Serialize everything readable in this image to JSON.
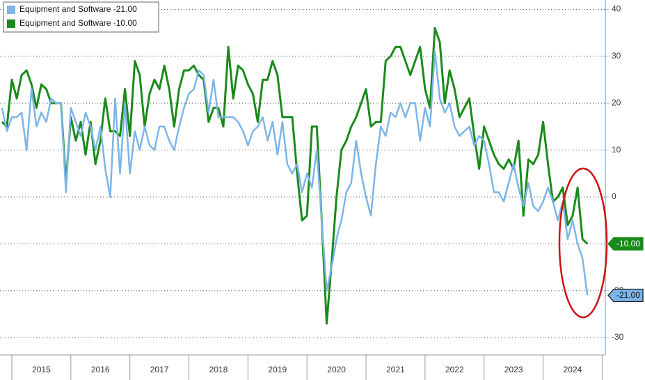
{
  "chart_data": {
    "type": "line",
    "categories": [
      null,
      null,
      null,
      null,
      null,
      null,
      null,
      null,
      "2015",
      null,
      null,
      null,
      null,
      null,
      null,
      null,
      null,
      null,
      null,
      null,
      "2016",
      null,
      null,
      null,
      null,
      null,
      null,
      null,
      null,
      null,
      null,
      null,
      "2017",
      null,
      null,
      null,
      null,
      null,
      null,
      null,
      null,
      null,
      null,
      null,
      "2018",
      null,
      null,
      null,
      null,
      null,
      null,
      null,
      null,
      null,
      null,
      null,
      "2019",
      null,
      null,
      null,
      null,
      null,
      null,
      null,
      null,
      null,
      null,
      null,
      "2020",
      null,
      null,
      null,
      null,
      null,
      null,
      null,
      null,
      null,
      null,
      null,
      "2021",
      null,
      null,
      null,
      null,
      null,
      null,
      null,
      null,
      null,
      null,
      null,
      "2022",
      null,
      null,
      null,
      null,
      null,
      null,
      null,
      null,
      null,
      null,
      null,
      "2023",
      null,
      null,
      null,
      null,
      null,
      null,
      null,
      null,
      null,
      null,
      null,
      "2024",
      null,
      null,
      null
    ],
    "series": [
      {
        "name": "Equipment and Software -21.00",
        "color": "#7cb5e8",
        "values": [
          19,
          14,
          17,
          17,
          18,
          10,
          23,
          15,
          18,
          16,
          21,
          20,
          20,
          1,
          19,
          16,
          13,
          18,
          15,
          10,
          15,
          6,
          0,
          21,
          5,
          20,
          5,
          14,
          10,
          15,
          11,
          10,
          15,
          15,
          12,
          10,
          15,
          19,
          22,
          23,
          27,
          26,
          18,
          25,
          17,
          17,
          17,
          17,
          16,
          14,
          11,
          14,
          15,
          17,
          12,
          16,
          9,
          16,
          7,
          5,
          7,
          1,
          5,
          2,
          10,
          -5,
          -20,
          -15,
          -9,
          -5,
          1,
          3,
          12,
          5,
          0,
          -4,
          7,
          15,
          13,
          18,
          17,
          20,
          17,
          20,
          20,
          12,
          19,
          15,
          31,
          21,
          18,
          20,
          15,
          13,
          14,
          15,
          11,
          13,
          12,
          7,
          1,
          1,
          -1,
          3,
          7,
          2,
          -2,
          3,
          -2,
          -3,
          -1,
          2,
          -1,
          -5,
          -1,
          -9,
          -5,
          -10,
          -13,
          -21
        ],
        "value_labels": [
          null,
          null,
          null,
          null,
          null,
          null,
          null,
          null,
          null,
          null,
          null,
          null,
          null,
          null,
          null,
          null,
          null,
          null,
          null,
          null,
          null,
          null,
          null,
          null,
          null,
          null,
          null,
          null,
          null,
          null,
          null,
          null,
          null,
          null,
          null,
          null,
          null,
          null,
          null,
          null,
          null,
          null,
          null,
          null,
          null,
          null,
          null,
          null,
          null,
          null,
          null,
          null,
          null,
          null,
          null,
          null,
          null,
          null,
          null,
          null,
          null,
          null,
          null,
          null,
          null,
          null,
          null,
          null,
          null,
          null,
          null,
          null,
          null,
          null,
          null,
          null,
          null,
          null,
          null,
          null,
          null,
          null,
          null,
          null,
          null,
          null,
          null,
          null,
          null,
          null,
          null,
          null,
          null,
          null,
          null,
          null,
          null,
          null,
          null,
          null,
          null,
          null,
          null,
          null,
          null,
          null,
          null,
          null,
          null,
          null,
          null,
          null,
          null,
          null,
          null,
          null,
          null,
          null,
          null,
          "-21.00"
        ]
      },
      {
        "name": "Equipment and Software -10.00",
        "color": "#1a8a1a",
        "values": [
          16,
          15,
          25,
          21,
          26,
          27,
          24,
          19,
          24,
          23,
          20,
          20,
          20,
          3,
          17,
          12,
          16,
          9,
          16,
          7,
          12,
          21,
          14,
          14,
          13,
          23,
          13,
          29,
          26,
          15,
          22,
          25,
          23,
          28,
          23,
          15,
          23,
          27,
          27,
          28,
          26,
          25,
          16,
          19,
          19,
          15,
          32,
          21,
          28,
          27,
          24,
          22,
          16,
          25,
          25,
          29,
          26,
          17,
          17,
          17,
          5,
          -5,
          -4,
          15,
          15,
          -5,
          -27,
          -14,
          0,
          10,
          12,
          15,
          17,
          20,
          23,
          15,
          16,
          16,
          29,
          30,
          32,
          32,
          29,
          26,
          29,
          32,
          23,
          19,
          36,
          33,
          20,
          27,
          23,
          17,
          19,
          21,
          13,
          6,
          15,
          12,
          9,
          7,
          6,
          8,
          6,
          12,
          -4,
          8,
          7,
          9,
          16,
          7,
          -1,
          0,
          2,
          -6,
          -4,
          2,
          -9,
          -10
        ],
        "value_labels": [
          null,
          null,
          null,
          null,
          null,
          null,
          null,
          null,
          null,
          null,
          null,
          null,
          null,
          null,
          null,
          null,
          null,
          null,
          null,
          null,
          null,
          null,
          null,
          null,
          null,
          null,
          null,
          null,
          null,
          null,
          null,
          null,
          null,
          null,
          null,
          null,
          null,
          null,
          null,
          null,
          null,
          null,
          null,
          null,
          null,
          null,
          null,
          null,
          null,
          null,
          null,
          null,
          null,
          null,
          null,
          null,
          null,
          null,
          null,
          null,
          null,
          null,
          null,
          null,
          null,
          null,
          null,
          null,
          null,
          null,
          null,
          null,
          null,
          null,
          null,
          null,
          null,
          null,
          null,
          null,
          null,
          null,
          null,
          null,
          null,
          null,
          null,
          null,
          null,
          null,
          null,
          null,
          null,
          null,
          null,
          null,
          null,
          null,
          null,
          null,
          null,
          null,
          null,
          null,
          null,
          null,
          null,
          null,
          null,
          null,
          null,
          null,
          null,
          null,
          null,
          null,
          null,
          null,
          null,
          "-10.00"
        ]
      }
    ],
    "ylim": [
      -33.7,
      42
    ],
    "yticks": [
      40,
      30,
      20,
      10,
      0,
      -10,
      -20,
      -30
    ],
    "grid": true,
    "legend": "top-left"
  }
}
